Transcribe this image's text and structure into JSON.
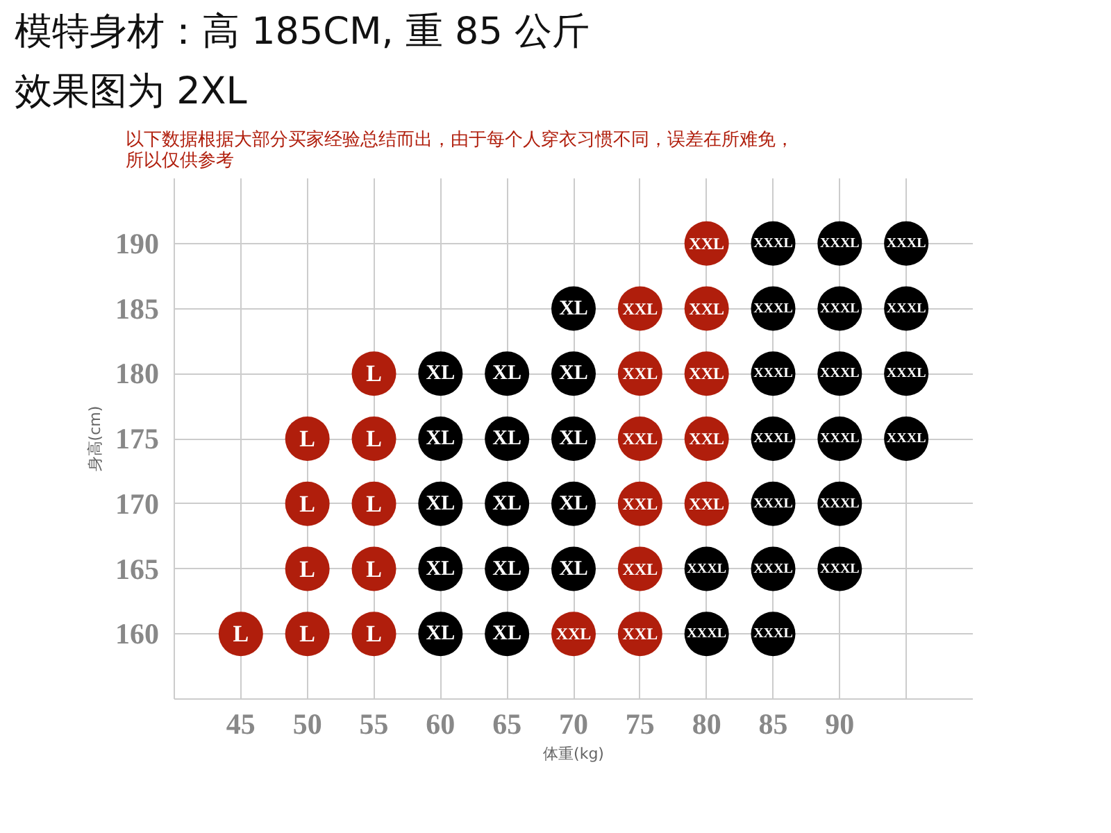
{
  "chart_data": {
    "type": "scatter",
    "title": "模特身材：高 185CM, 重 85 公斤",
    "subtitle": "效果图为 2XL",
    "annotations": [
      "以下数据根据大部分买家经验总结而出，由于每个人穿衣习惯不同，误差在所难免，所以仅供参考"
    ],
    "xlabel": "体重(kg)",
    "ylabel": "身高(cm)",
    "xlim": [
      40,
      100
    ],
    "ylim": [
      155,
      195
    ],
    "xticks": [
      45,
      50,
      55,
      60,
      65,
      70,
      75,
      80,
      85,
      90,
      {
        "value": 95,
        "label": null
      }
    ],
    "yticks": [
      160,
      165,
      170,
      175,
      180,
      185,
      190
    ],
    "grid": true,
    "marker": "circle",
    "series": [
      {
        "name": "L",
        "color": "#b01e0c",
        "x": [
          45,
          50,
          50,
          50,
          50,
          55,
          55,
          55,
          55,
          55
        ],
        "values": [
          160,
          160,
          165,
          170,
          175,
          160,
          165,
          170,
          175,
          180
        ]
      },
      {
        "name": "XL",
        "color": "#000000",
        "x": [
          60,
          60,
          60,
          60,
          60,
          65,
          65,
          65,
          65,
          65,
          70,
          70,
          70,
          70,
          70
        ],
        "values": [
          160,
          165,
          170,
          175,
          180,
          160,
          165,
          170,
          175,
          180,
          165,
          170,
          175,
          180,
          185
        ]
      },
      {
        "name": "XXL",
        "color": "#b01e0c",
        "x": [
          70,
          75,
          75,
          75,
          75,
          75,
          75,
          80,
          80,
          80,
          80,
          80
        ],
        "values": [
          160,
          160,
          165,
          170,
          175,
          180,
          185,
          170,
          175,
          180,
          185,
          190
        ]
      },
      {
        "name": "XXXL",
        "color": "#000000",
        "x": [
          80,
          80,
          85,
          85,
          85,
          85,
          85,
          85,
          85,
          90,
          90,
          90,
          90,
          90,
          90,
          95,
          95,
          95,
          95
        ],
        "values": [
          160,
          165,
          160,
          165,
          170,
          175,
          180,
          185,
          190,
          165,
          170,
          175,
          180,
          185,
          190,
          175,
          180,
          185,
          190
        ]
      }
    ]
  }
}
